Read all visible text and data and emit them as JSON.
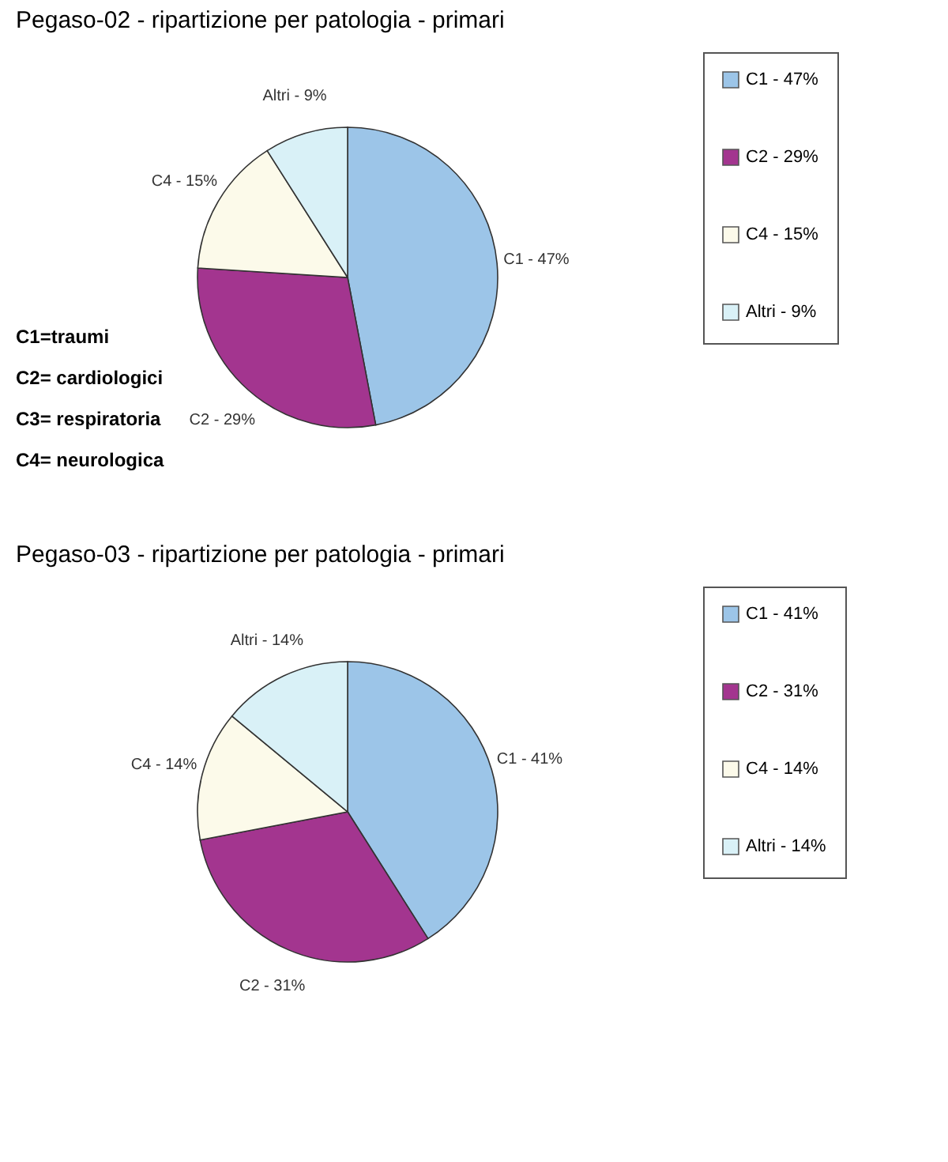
{
  "chart_data": [
    {
      "type": "pie",
      "title": "Pegaso-02 - ripartizione per patologia - primari",
      "categories": [
        "C1 - 47%",
        "C2 - 29%",
        "C4 - 15%",
        "Altri - 9%"
      ],
      "values": [
        47,
        29,
        15,
        9
      ],
      "colors": [
        "#9cc5e8",
        "#a3358f",
        "#fcfaea",
        "#d9f1f7"
      ],
      "legend": "right",
      "annotations": [
        "C1=traumi",
        "C2= cardiologici",
        "C3= respiratoria",
        "C4= neurologica"
      ]
    },
    {
      "type": "pie",
      "title": "Pegaso-03 - ripartizione per patologia - primari",
      "categories": [
        "C1 - 41%",
        "C2 - 31%",
        "C4 - 14%",
        "Altri - 14%"
      ],
      "values": [
        41,
        31,
        14,
        14
      ],
      "colors": [
        "#9cc5e8",
        "#a3358f",
        "#fcfaea",
        "#d9f1f7"
      ],
      "legend": "right"
    }
  ]
}
